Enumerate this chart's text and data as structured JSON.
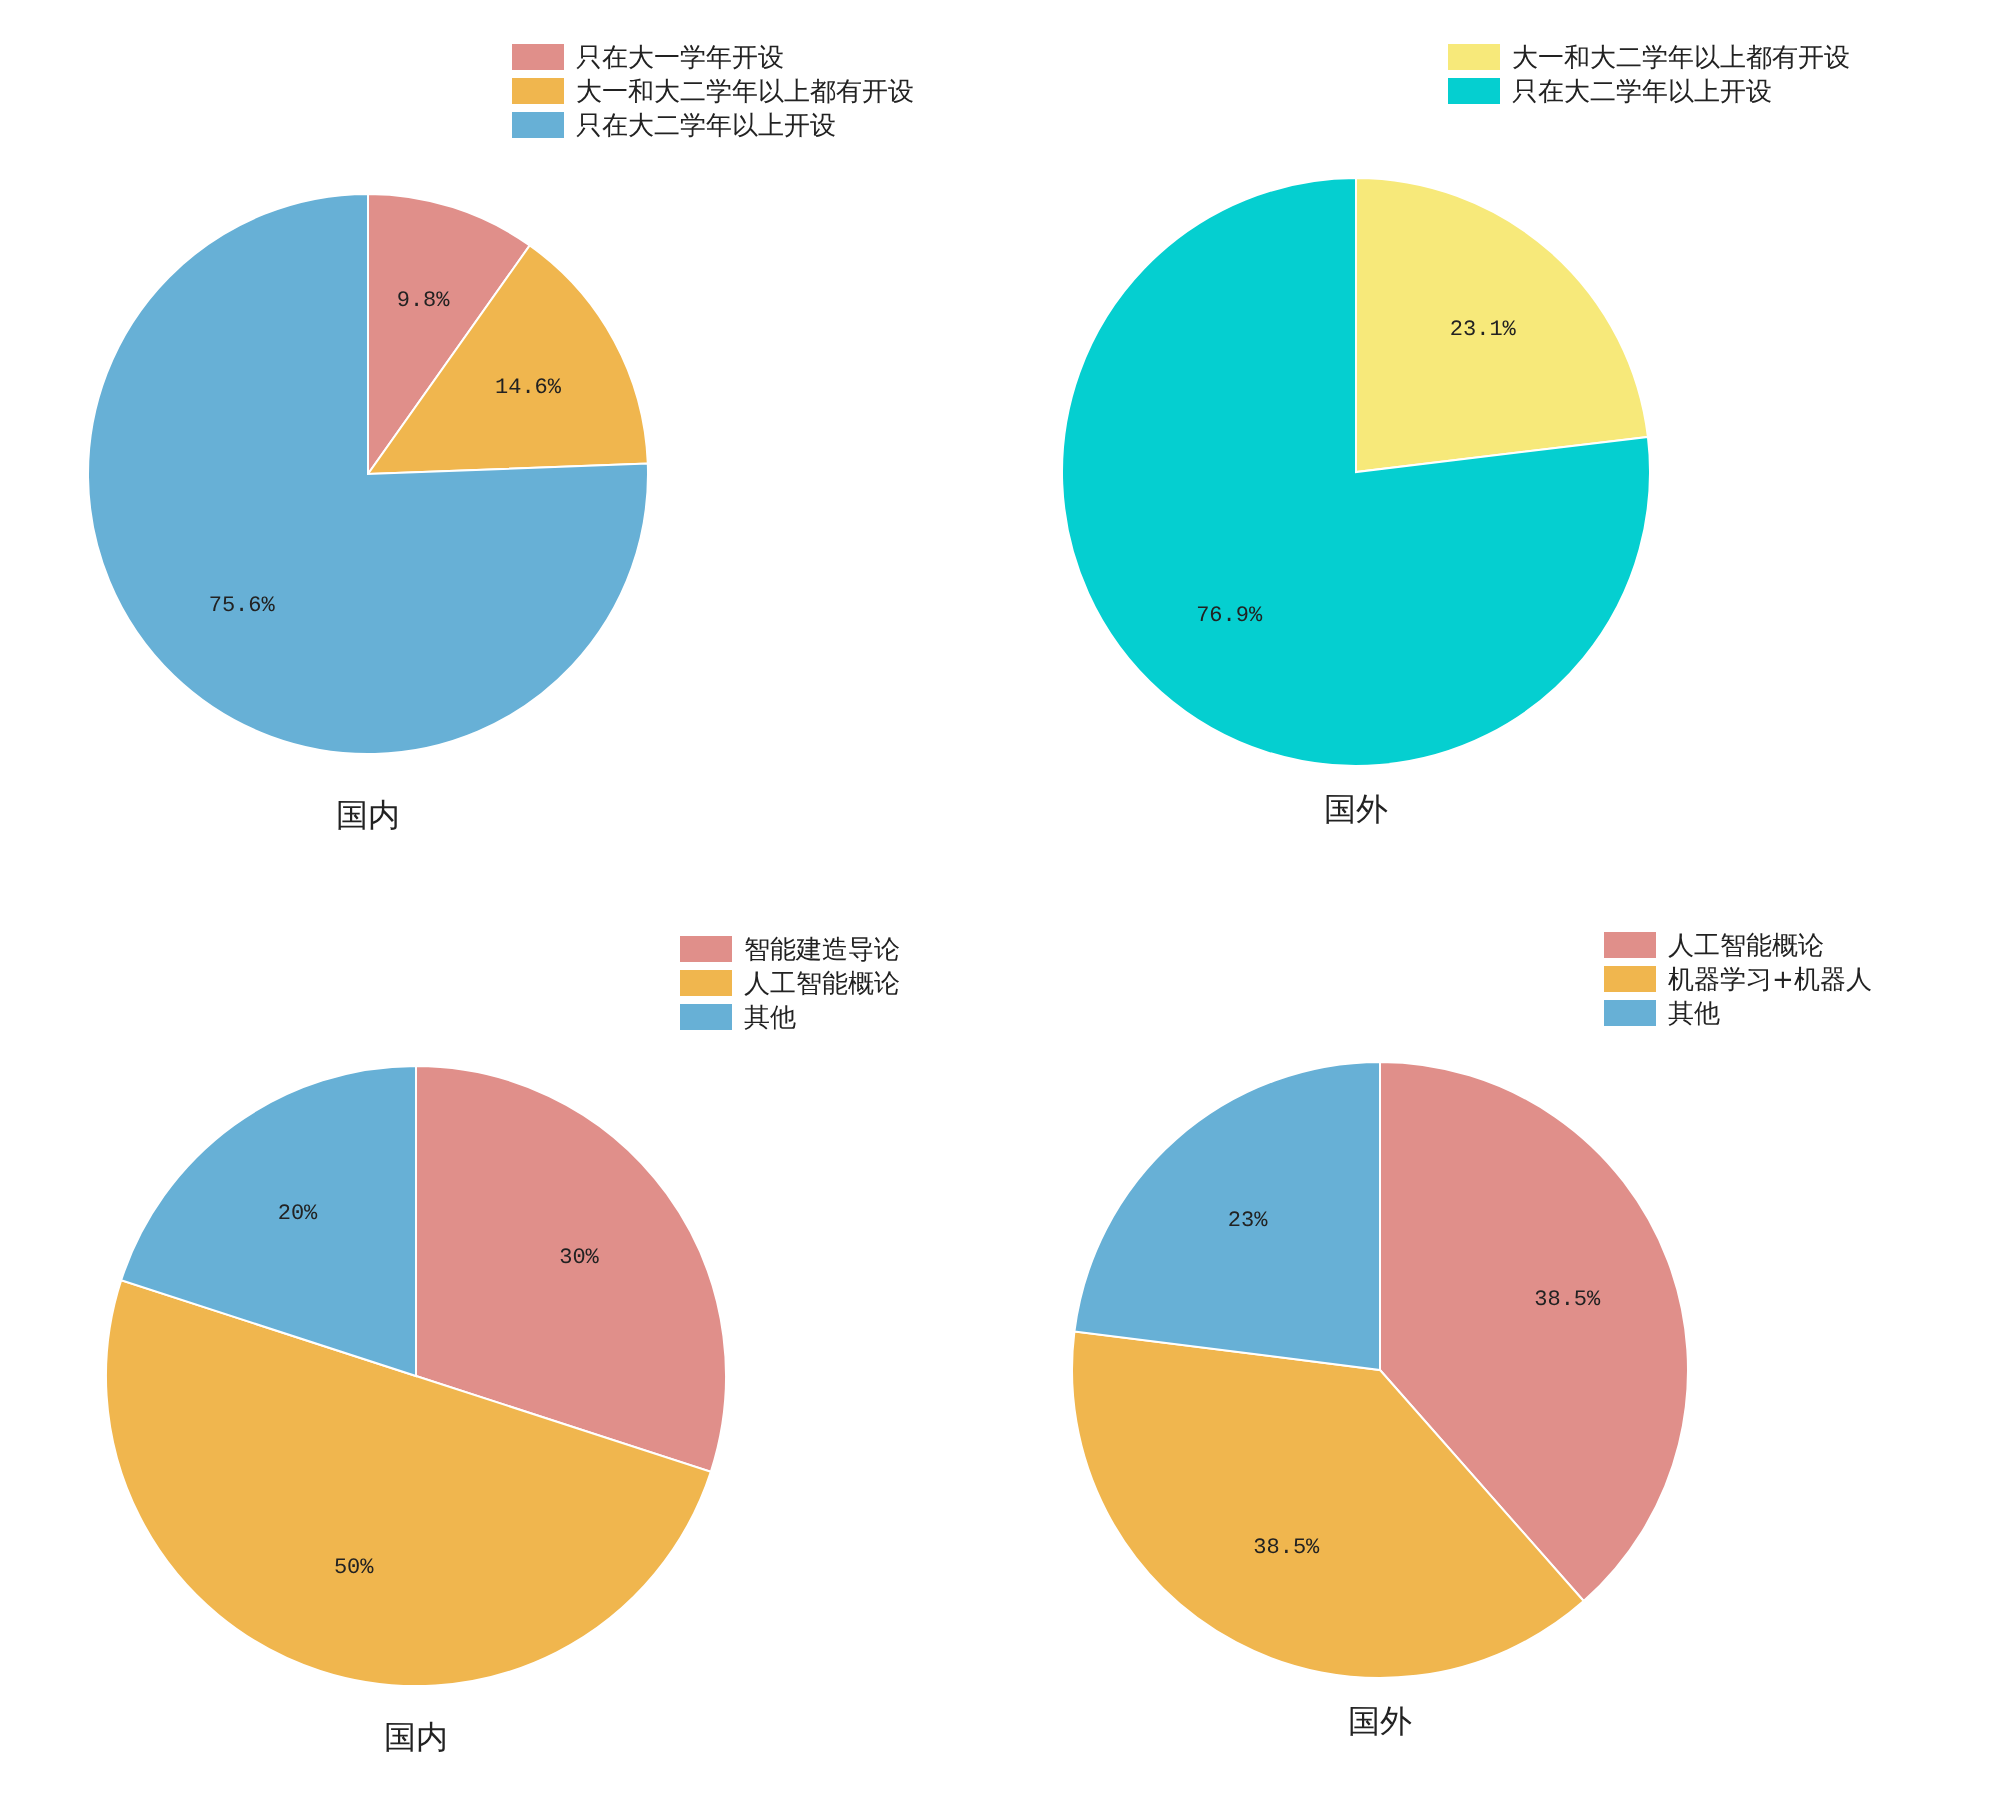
{
  "chart_data": [
    {
      "type": "pie",
      "title": "国内",
      "categories": [
        "只在大一学年开设",
        "大一和大二学年以上都有开设",
        "只在大二学年以上开设"
      ],
      "values": [
        9.8,
        14.6,
        75.6
      ],
      "value_labels": [
        "9.8%",
        "14.6%",
        "75.6%"
      ],
      "colors": [
        "#e08f8a",
        "#f0b64e",
        "#67b0d6"
      ],
      "legend": "top right"
    },
    {
      "type": "pie",
      "title": "国外",
      "categories": [
        "大一和大二学年以上都有开设",
        "只在大二学年以上开设"
      ],
      "values": [
        23.1,
        76.9
      ],
      "value_labels": [
        "23.1%",
        "76.9%"
      ],
      "colors": [
        "#f7e97a",
        "#05cfd0"
      ],
      "legend": "top right"
    },
    {
      "type": "pie",
      "title": "国内",
      "categories": [
        "智能建造导论",
        "人工智能概论",
        "其他"
      ],
      "values": [
        30,
        50,
        20
      ],
      "value_labels": [
        "30%",
        "50%",
        "20%"
      ],
      "colors": [
        "#e08f8a",
        "#f0b64e",
        "#67b0d6"
      ],
      "legend": "top right"
    },
    {
      "type": "pie",
      "title": "国外",
      "categories": [
        "人工智能概论",
        "机器学习+机器人",
        "其他"
      ],
      "values": [
        38.5,
        38.5,
        23
      ],
      "value_labels": [
        "38.5%",
        "38.5%",
        "23%"
      ],
      "colors": [
        "#e08f8a",
        "#f0b64e",
        "#67b0d6"
      ],
      "legend": "top right"
    }
  ]
}
